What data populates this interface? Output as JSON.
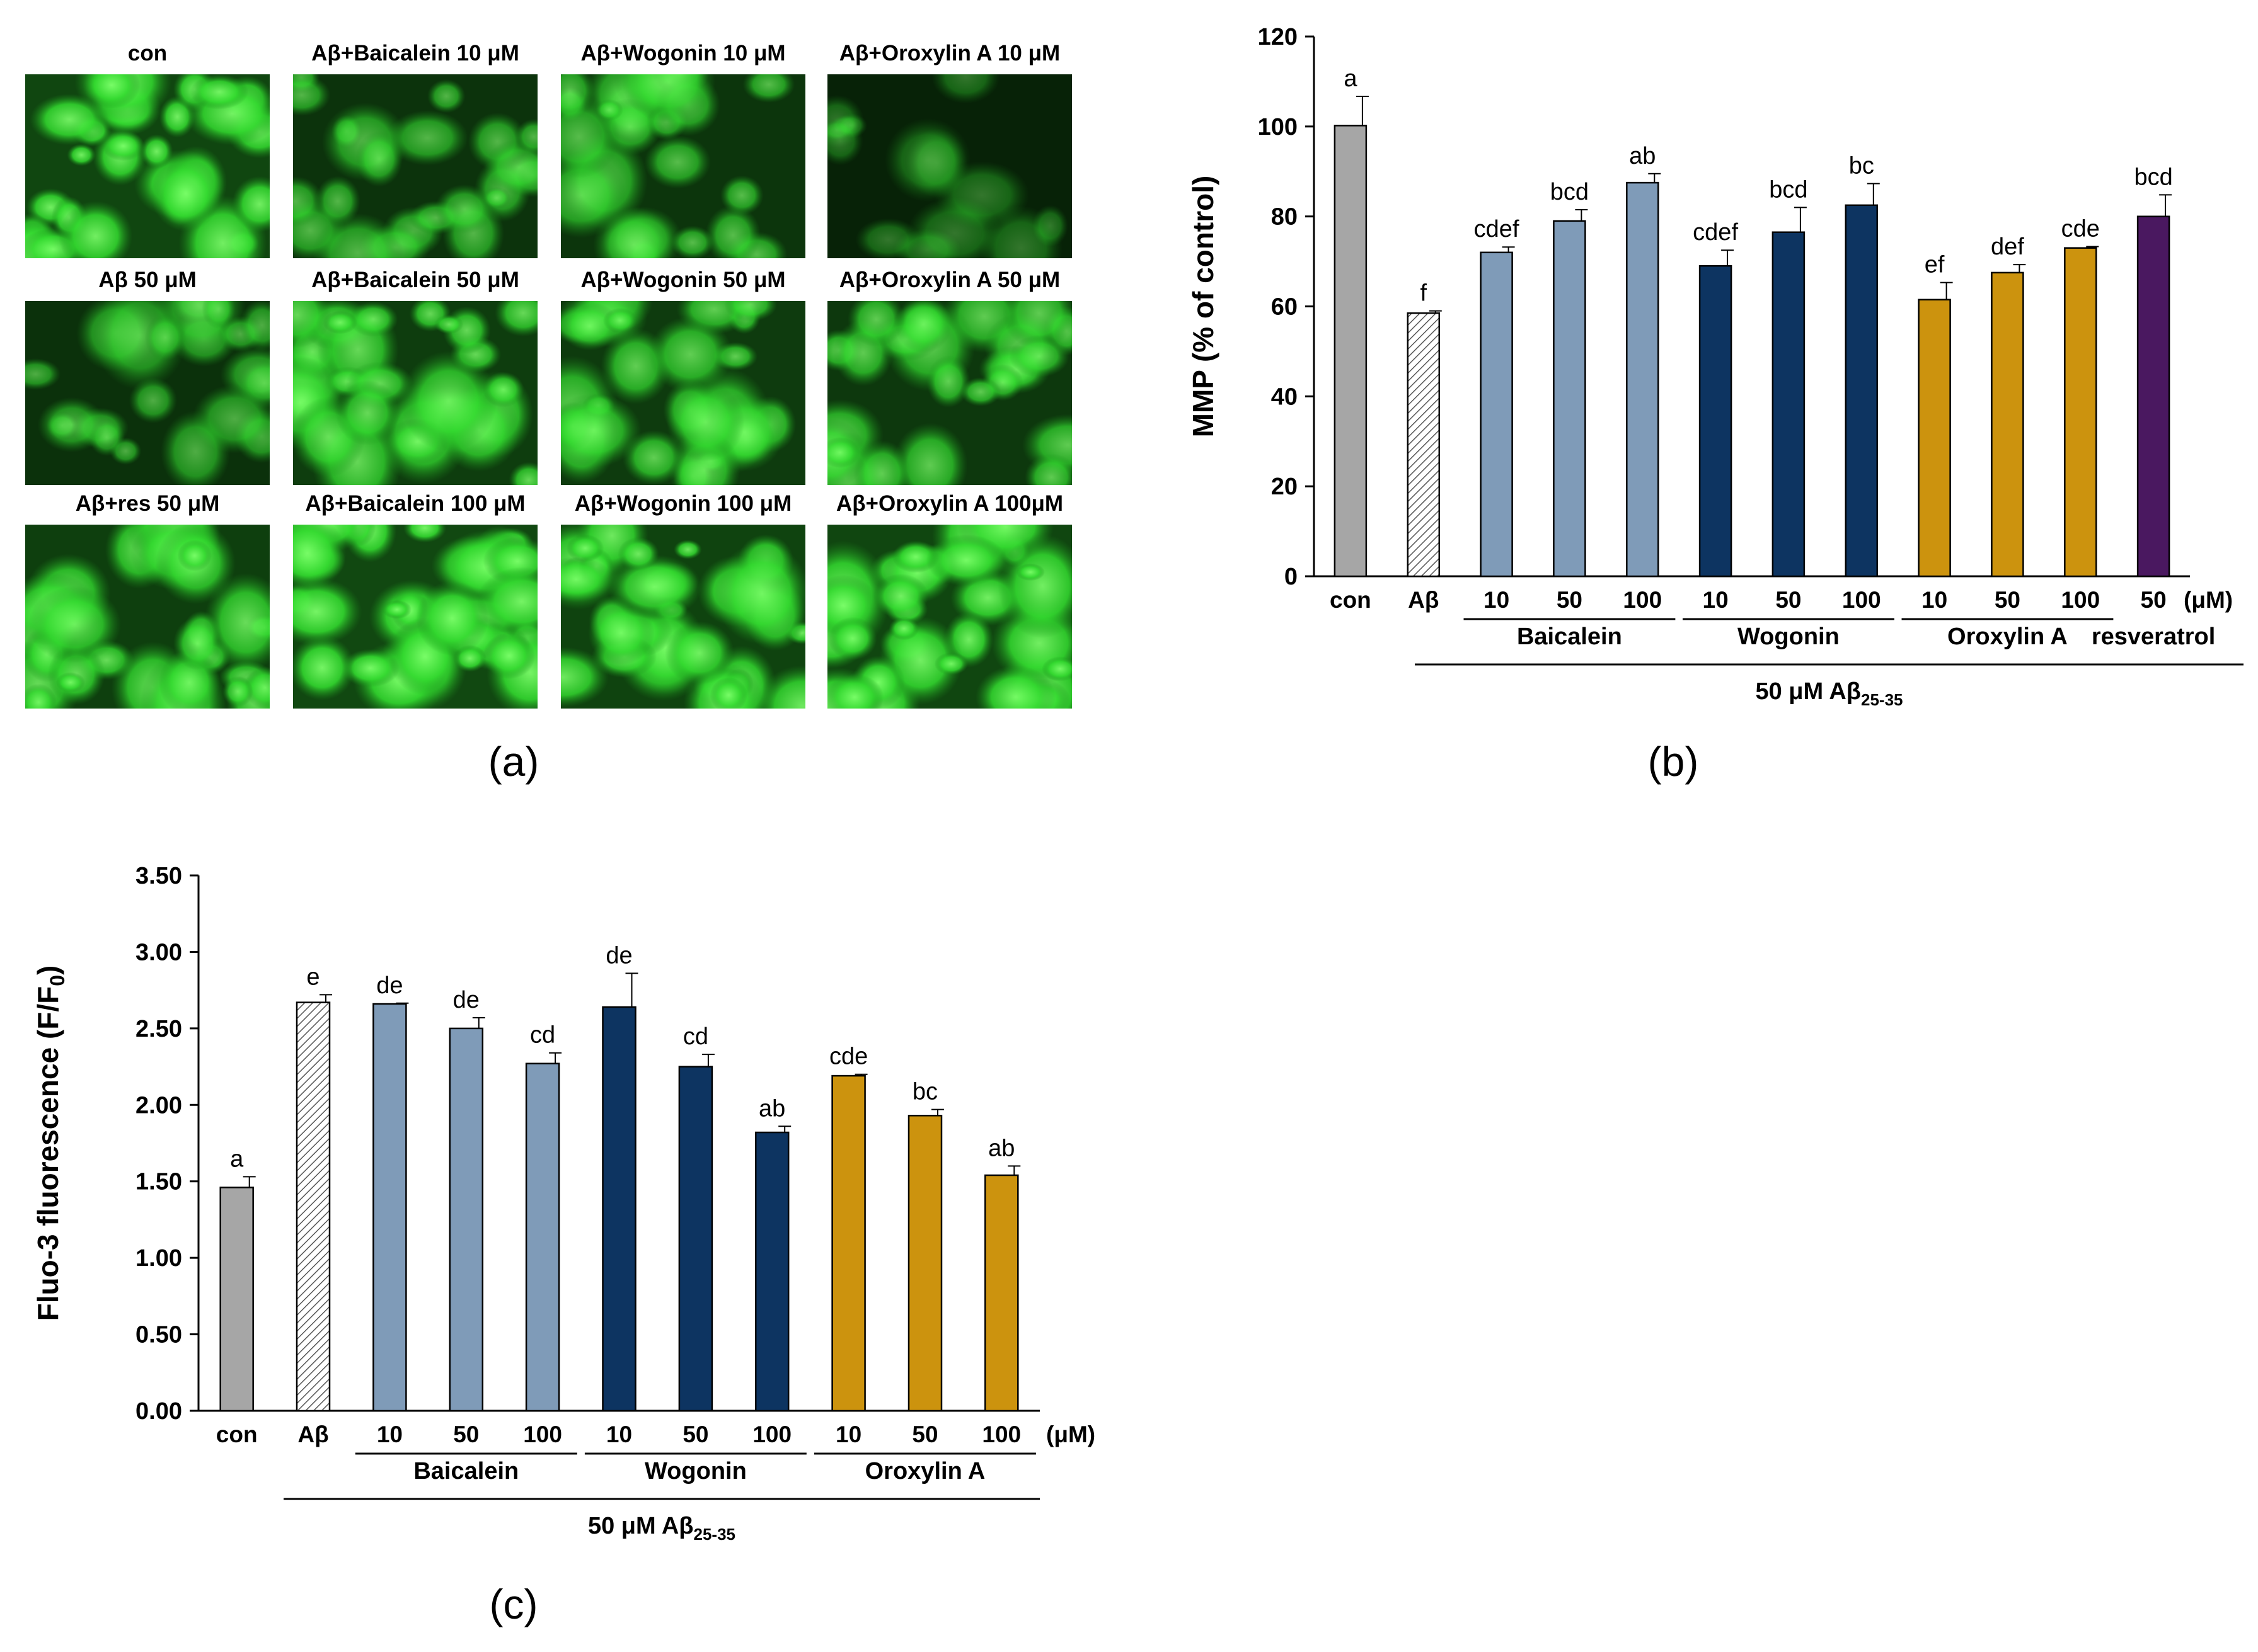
{
  "panel_a": {
    "label": "(a)",
    "tiles": [
      {
        "label": "con",
        "brightness": 0.95
      },
      {
        "label": "Aβ+Baicalein 10 μM",
        "brightness": 0.55
      },
      {
        "label": "Aβ+Wogonin 10 μM",
        "brightness": 0.6
      },
      {
        "label": "Aβ+Oroxylin A 10 μM",
        "brightness": 0.18
      },
      {
        "label": "Aβ 50 μM",
        "brightness": 0.5
      },
      {
        "label": "Aβ+Baicalein 50 μM",
        "brightness": 0.78
      },
      {
        "label": "Aβ+Wogonin 50 μM",
        "brightness": 0.72
      },
      {
        "label": "Aβ+Oroxylin A 50 μM",
        "brightness": 0.7
      },
      {
        "label": "Aβ+res 50 μM",
        "brightness": 0.82
      },
      {
        "label": "Aβ+Baicalein 100 μM",
        "brightness": 0.98
      },
      {
        "label": "Aβ+Wogonin 100 μM",
        "brightness": 0.9
      },
      {
        "label": "Aβ+Oroxylin A 100μM",
        "brightness": 0.95
      }
    ]
  },
  "colors": {
    "con": "#a6a6a6",
    "abeta_hatch": "#d4d4d4",
    "baicalein": "#7f9bb8",
    "wogonin": "#0d3461",
    "oroxylin": "#cc930e",
    "resveratrol": "#4a1860",
    "fluor_green": "#39e639",
    "fluor_dark": "#061b06"
  },
  "chart_data": [
    {
      "type": "bar",
      "panel_label": "(b)",
      "ylabel": "MMP (% of control)",
      "ylim": [
        0,
        120
      ],
      "yticks": [
        "0",
        "20",
        "40",
        "60",
        "80",
        "100",
        "120"
      ],
      "categories": [
        "con",
        "Aβ",
        "10",
        "50",
        "100",
        "10",
        "50",
        "100",
        "10",
        "50",
        "100",
        "50"
      ],
      "unit_label": "(μM)",
      "values": [
        100.2,
        58.5,
        72.0,
        79.0,
        87.5,
        69.0,
        76.5,
        82.5,
        61.5,
        67.5,
        73.0,
        80.0
      ],
      "errors": [
        6.5,
        0.5,
        1.2,
        2.5,
        2.0,
        3.5,
        5.5,
        4.8,
        3.8,
        1.8,
        0.3,
        4.8
      ],
      "sig_letters": [
        "a",
        "f",
        "cdef",
        "bcd",
        "ab",
        "cdef",
        "bcd",
        "bc",
        "ef",
        "def",
        "cde",
        "bcd"
      ],
      "bar_styles": [
        "con",
        "abeta_hatch",
        "baicalein",
        "baicalein",
        "baicalein",
        "wogonin",
        "wogonin",
        "wogonin",
        "oroxylin",
        "oroxylin",
        "oroxylin",
        "resveratrol"
      ],
      "groups": [
        "Baicalein",
        "Wogonin",
        "Oroxylin A",
        "resveratrol"
      ],
      "treatment_label": "50 μM Aβ",
      "treatment_sub": "25-35"
    },
    {
      "type": "bar",
      "panel_label": "(c)",
      "ylabel": "Fluo-3 fluorescence (F/F",
      "ylabel_sub": "0",
      "ylabel_end": ")",
      "ylim": [
        0,
        3.5
      ],
      "yticks": [
        "0.00",
        "0.50",
        "1.00",
        "1.50",
        "2.00",
        "2.50",
        "3.00",
        "3.50"
      ],
      "categories": [
        "con",
        "Aβ",
        "10",
        "50",
        "100",
        "10",
        "50",
        "100",
        "10",
        "50",
        "100"
      ],
      "unit_label": "(μM)",
      "values": [
        1.46,
        2.67,
        2.66,
        2.5,
        2.27,
        2.64,
        2.25,
        1.82,
        2.19,
        1.93,
        1.54
      ],
      "errors": [
        0.07,
        0.05,
        0.005,
        0.07,
        0.07,
        0.22,
        0.08,
        0.04,
        0.01,
        0.04,
        0.06
      ],
      "sig_letters": [
        "a",
        "e",
        "de",
        "de",
        "cd",
        "de",
        "cd",
        "ab",
        "cde",
        "bc",
        "ab"
      ],
      "bar_styles": [
        "con",
        "abeta_hatch",
        "baicalein",
        "baicalein",
        "baicalein",
        "wogonin",
        "wogonin",
        "wogonin",
        "oroxylin",
        "oroxylin",
        "oroxylin"
      ],
      "groups": [
        "Baicalein",
        "Wogonin",
        "Oroxylin A"
      ],
      "treatment_label": "50 μM Aβ",
      "treatment_sub": "25-35"
    }
  ]
}
